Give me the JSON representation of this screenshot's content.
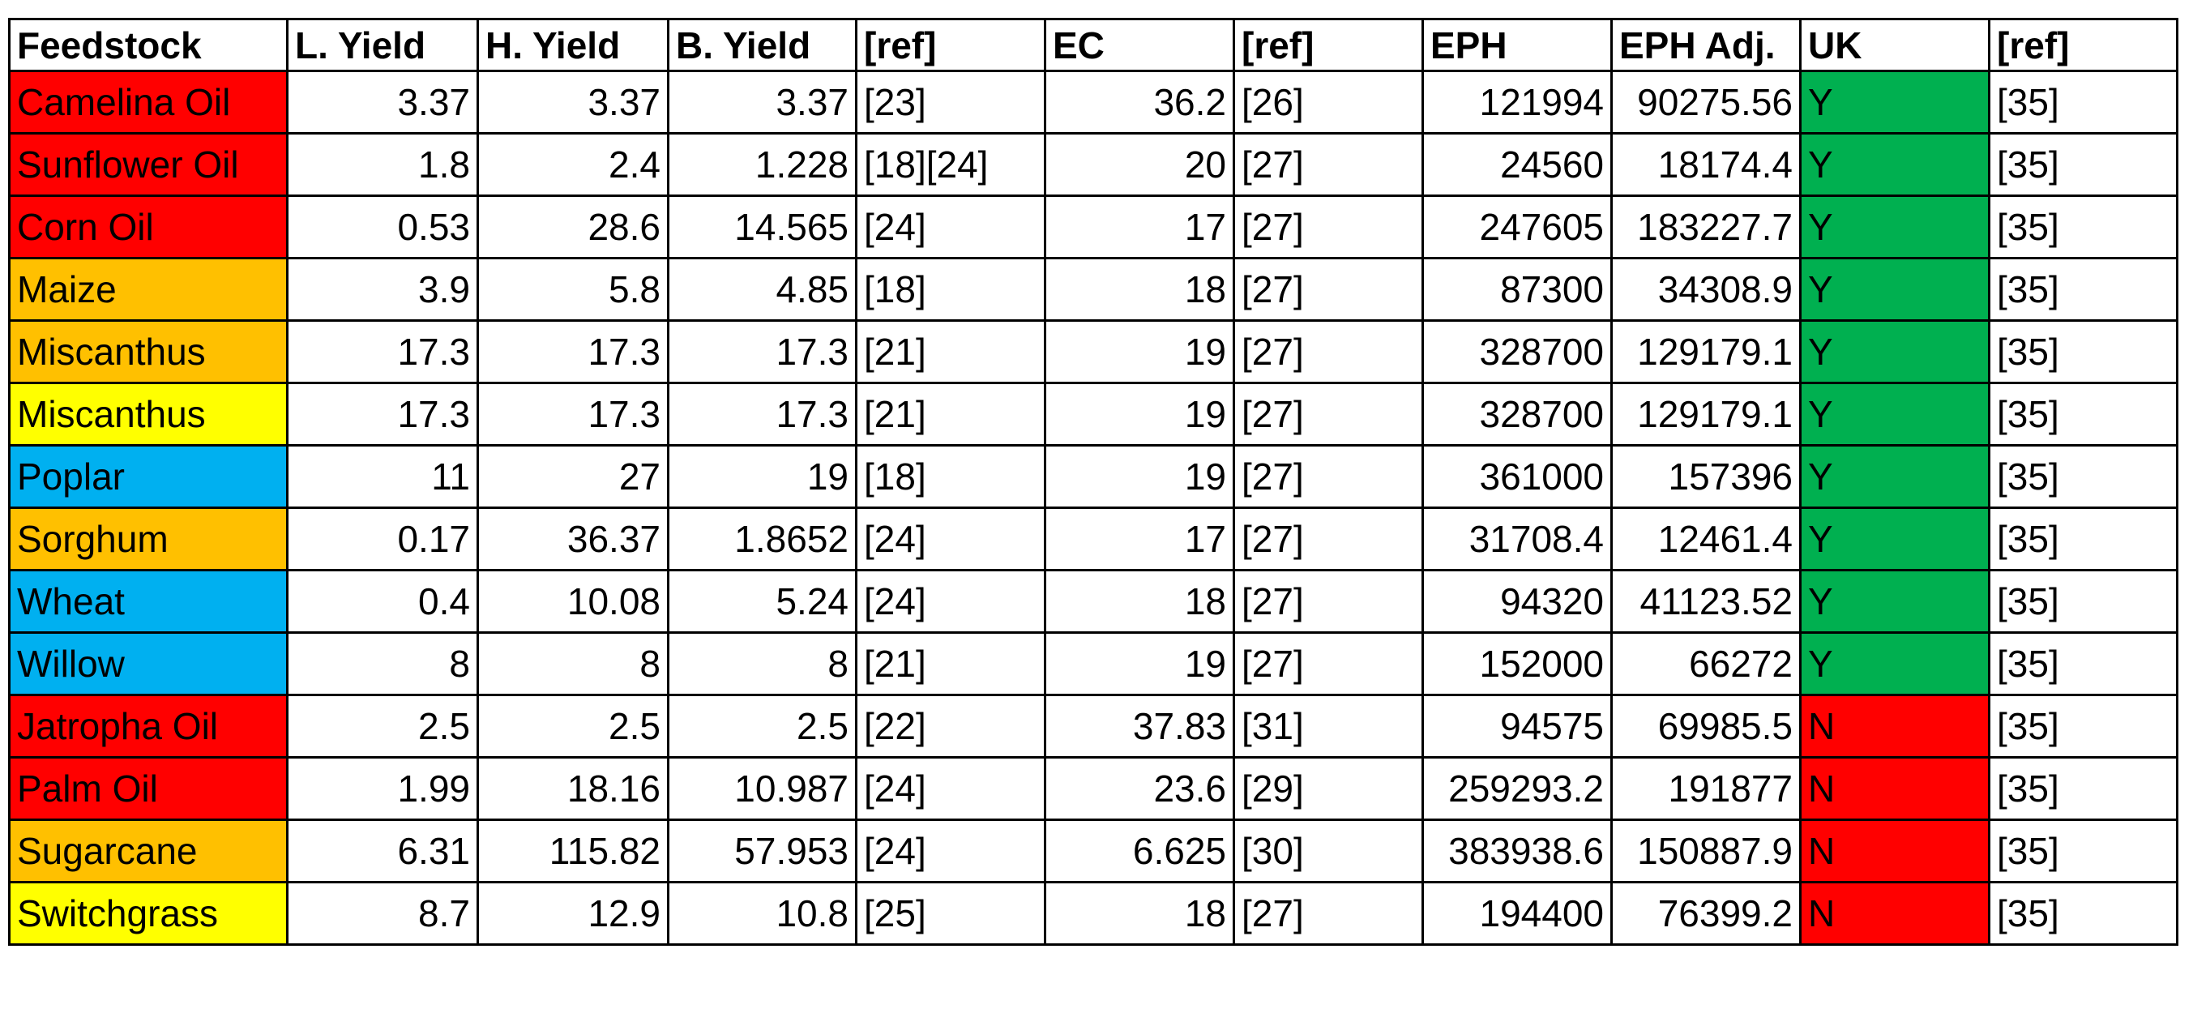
{
  "headers": [
    "Feedstock",
    "L. Yield",
    "H. Yield",
    "B. Yield",
    "[ref]",
    "EC",
    "[ref]",
    "EPH",
    "EPH Adj.",
    "UK",
    "[ref]"
  ],
  "colors": {
    "red": "#ff0000",
    "orange": "#ffc000",
    "yellow": "#ffff00",
    "blue": "#00b0f0",
    "green": "#00b050"
  },
  "rows": [
    {
      "feedstock": "Camelina Oil",
      "color": "#ff0000",
      "l_yield": "3.37",
      "h_yield": "3.37",
      "b_yield": "3.37",
      "ref1": "[23]",
      "ec": "36.2",
      "ref2": "[26]",
      "eph": "121994",
      "eph_adj": "90275.56",
      "uk": "Y",
      "uk_color": "#00b050",
      "ref3": "[35]"
    },
    {
      "feedstock": "Sunflower Oil",
      "color": "#ff0000",
      "l_yield": "1.8",
      "h_yield": "2.4",
      "b_yield": "1.228",
      "ref1": "[18][24]",
      "ec": "20",
      "ref2": "[27]",
      "eph": "24560",
      "eph_adj": "18174.4",
      "uk": "Y",
      "uk_color": "#00b050",
      "ref3": "[35]"
    },
    {
      "feedstock": "Corn Oil",
      "color": "#ff0000",
      "l_yield": "0.53",
      "h_yield": "28.6",
      "b_yield": "14.565",
      "ref1": "[24]",
      "ec": "17",
      "ref2": "[27]",
      "eph": "247605",
      "eph_adj": "183227.7",
      "uk": "Y",
      "uk_color": "#00b050",
      "ref3": "[35]"
    },
    {
      "feedstock": "Maize",
      "color": "#ffc000",
      "l_yield": "3.9",
      "h_yield": "5.8",
      "b_yield": "4.85",
      "ref1": "[18]",
      "ec": "18",
      "ref2": "[27]",
      "eph": "87300",
      "eph_adj": "34308.9",
      "uk": "Y",
      "uk_color": "#00b050",
      "ref3": "[35]"
    },
    {
      "feedstock": "Miscanthus",
      "color": "#ffc000",
      "l_yield": "17.3",
      "h_yield": "17.3",
      "b_yield": "17.3",
      "ref1": "[21]",
      "ec": "19",
      "ref2": "[27]",
      "eph": "328700",
      "eph_adj": "129179.1",
      "uk": "Y",
      "uk_color": "#00b050",
      "ref3": "[35]"
    },
    {
      "feedstock": "Miscanthus",
      "color": "#ffff00",
      "l_yield": "17.3",
      "h_yield": "17.3",
      "b_yield": "17.3",
      "ref1": "[21]",
      "ec": "19",
      "ref2": "[27]",
      "eph": "328700",
      "eph_adj": "129179.1",
      "uk": "Y",
      "uk_color": "#00b050",
      "ref3": "[35]"
    },
    {
      "feedstock": "Poplar",
      "color": "#00b0f0",
      "l_yield": "11",
      "h_yield": "27",
      "b_yield": "19",
      "ref1": "[18]",
      "ec": "19",
      "ref2": "[27]",
      "eph": "361000",
      "eph_adj": "157396",
      "uk": "Y",
      "uk_color": "#00b050",
      "ref3": "[35]"
    },
    {
      "feedstock": "Sorghum",
      "color": "#ffc000",
      "l_yield": "0.17",
      "h_yield": "36.37",
      "b_yield": "1.8652",
      "ref1": "[24]",
      "ec": "17",
      "ref2": "[27]",
      "eph": "31708.4",
      "eph_adj": "12461.4",
      "uk": "Y",
      "uk_color": "#00b050",
      "ref3": "[35]"
    },
    {
      "feedstock": "Wheat",
      "color": "#00b0f0",
      "l_yield": "0.4",
      "h_yield": "10.08",
      "b_yield": "5.24",
      "ref1": "[24]",
      "ec": "18",
      "ref2": "[27]",
      "eph": "94320",
      "eph_adj": "41123.52",
      "uk": "Y",
      "uk_color": "#00b050",
      "ref3": "[35]"
    },
    {
      "feedstock": "Willow",
      "color": "#00b0f0",
      "l_yield": "8",
      "h_yield": "8",
      "b_yield": "8",
      "ref1": "[21]",
      "ec": "19",
      "ref2": "[27]",
      "eph": "152000",
      "eph_adj": "66272",
      "uk": "Y",
      "uk_color": "#00b050",
      "ref3": "[35]"
    },
    {
      "feedstock": "Jatropha Oil",
      "color": "#ff0000",
      "l_yield": "2.5",
      "h_yield": "2.5",
      "b_yield": "2.5",
      "ref1": "[22]",
      "ec": "37.83",
      "ref2": "[31]",
      "eph": "94575",
      "eph_adj": "69985.5",
      "uk": "N",
      "uk_color": "#ff0000",
      "ref3": "[35]"
    },
    {
      "feedstock": "Palm Oil",
      "color": "#ff0000",
      "l_yield": "1.99",
      "h_yield": "18.16",
      "b_yield": "10.987",
      "ref1": "[24]",
      "ec": "23.6",
      "ref2": "[29]",
      "eph": "259293.2",
      "eph_adj": "191877",
      "uk": "N",
      "uk_color": "#ff0000",
      "ref3": "[35]"
    },
    {
      "feedstock": "Sugarcane",
      "color": "#ffc000",
      "l_yield": "6.31",
      "h_yield": "115.82",
      "b_yield": "57.953",
      "ref1": "[24]",
      "ec": "6.625",
      "ref2": "[30]",
      "eph": "383938.6",
      "eph_adj": "150887.9",
      "uk": "N",
      "uk_color": "#ff0000",
      "ref3": "[35]"
    },
    {
      "feedstock": "Switchgrass",
      "color": "#ffff00",
      "l_yield": "8.7",
      "h_yield": "12.9",
      "b_yield": "10.8",
      "ref1": "[25]",
      "ec": "18",
      "ref2": "[27]",
      "eph": "194400",
      "eph_adj": "76399.2",
      "uk": "N",
      "uk_color": "#ff0000",
      "ref3": "[35]"
    }
  ]
}
